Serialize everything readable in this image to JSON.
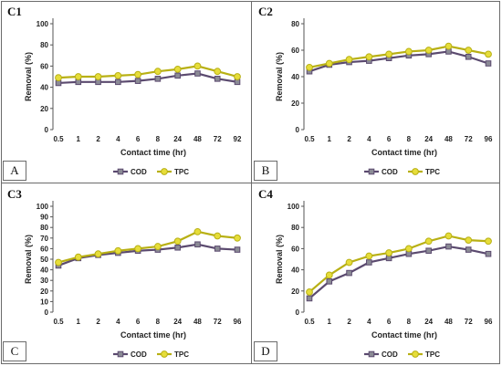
{
  "colors": {
    "cod": "#5b4a6f",
    "cod_marker": "#8b8b95",
    "tpc": "#b8b014",
    "tpc_marker": "#e6dd3a",
    "grid": "#d0d0d0"
  },
  "chart_data": [
    {
      "type": "line",
      "panel_label": "C1",
      "letter": "A",
      "xlabel": "Contact time (hr)",
      "ylabel": "Removal (%)",
      "ylim": [
        0,
        100
      ],
      "yticks": [
        "0",
        "20",
        "40",
        "60",
        "80",
        "100"
      ],
      "categories": [
        "0.5",
        "1",
        "2",
        "4",
        "6",
        "8",
        "24",
        "48",
        "72",
        "92"
      ],
      "series": [
        {
          "name": "COD",
          "values": [
            44,
            45,
            45,
            45,
            46,
            48,
            51,
            53,
            48,
            45
          ]
        },
        {
          "name": "TPC",
          "values": [
            49,
            50,
            50,
            51,
            52,
            55,
            57,
            60,
            55,
            50
          ]
        }
      ]
    },
    {
      "type": "line",
      "panel_label": "C2",
      "letter": "B",
      "xlabel": "Contact time (hr)",
      "ylabel": "Removal (%)",
      "ylim": [
        0,
        80
      ],
      "yticks": [
        "0",
        "20",
        "40",
        "60",
        "80"
      ],
      "categories": [
        "0.5",
        "1",
        "2",
        "4",
        "6",
        "8",
        "24",
        "48",
        "72",
        "96"
      ],
      "series": [
        {
          "name": "COD",
          "values": [
            44,
            49,
            51,
            52,
            54,
            56,
            57,
            59,
            55,
            50
          ]
        },
        {
          "name": "TPC",
          "values": [
            47,
            50,
            53,
            55,
            57,
            59,
            60,
            63,
            60,
            57
          ]
        }
      ]
    },
    {
      "type": "line",
      "panel_label": "C3",
      "letter": "C",
      "xlabel": "Contact time (hr)",
      "ylabel": "Removal (%)",
      "ylim": [
        0,
        100
      ],
      "yticks": [
        "0",
        "10",
        "20",
        "30",
        "40",
        "50",
        "60",
        "70",
        "80",
        "90",
        "100"
      ],
      "categories": [
        "0.5",
        "1",
        "2",
        "4",
        "6",
        "8",
        "24",
        "48",
        "72",
        "96"
      ],
      "series": [
        {
          "name": "COD",
          "values": [
            44,
            51,
            54,
            56,
            58,
            59,
            61,
            64,
            60,
            59
          ]
        },
        {
          "name": "TPC",
          "values": [
            47,
            52,
            55,
            58,
            60,
            62,
            67,
            76,
            72,
            70
          ]
        }
      ]
    },
    {
      "type": "line",
      "panel_label": "C4",
      "letter": "D",
      "xlabel": "Contact time (hr)",
      "ylabel": "Removal (%)",
      "ylim": [
        0,
        100
      ],
      "yticks": [
        "0",
        "20",
        "40",
        "60",
        "80",
        "100"
      ],
      "categories": [
        "0.5",
        "1",
        "2",
        "4",
        "6",
        "8",
        "24",
        "48",
        "72",
        "96"
      ],
      "series": [
        {
          "name": "COD",
          "values": [
            13,
            29,
            37,
            47,
            51,
            55,
            58,
            62,
            59,
            55
          ]
        },
        {
          "name": "TPC",
          "values": [
            19,
            35,
            47,
            53,
            56,
            60,
            67,
            72,
            68,
            67
          ]
        }
      ]
    }
  ]
}
